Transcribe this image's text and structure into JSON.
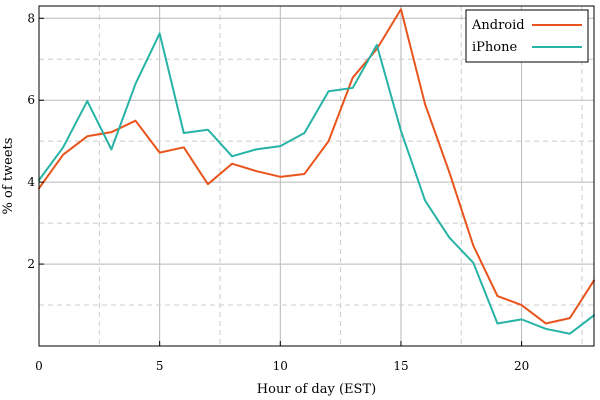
{
  "chart_data": {
    "type": "line",
    "title": "",
    "xlabel": "Hour of day (EST)",
    "ylabel": "% of tweets",
    "xlim": [
      0,
      23
    ],
    "ylim": [
      0,
      8.3
    ],
    "x_ticks": [
      0,
      5,
      10,
      15,
      20
    ],
    "y_ticks": [
      2,
      4,
      6,
      8
    ],
    "grid": true,
    "legend_position": "top-right",
    "x": [
      0,
      1,
      2,
      3,
      4,
      5,
      6,
      7,
      8,
      9,
      10,
      11,
      12,
      13,
      14,
      15,
      16,
      17,
      18,
      19,
      20,
      21,
      22,
      23
    ],
    "series": [
      {
        "name": "Android",
        "color": "#e8541c",
        "values": [
          3.85,
          4.67,
          5.12,
          5.22,
          5.5,
          4.72,
          4.85,
          3.95,
          4.45,
          4.27,
          4.13,
          4.2,
          5.0,
          6.55,
          7.25,
          8.22,
          5.9,
          4.25,
          2.45,
          1.22,
          1.0,
          0.55,
          0.68,
          1.6
        ]
      },
      {
        "name": "iPhone",
        "color": "#27b3a6",
        "values": [
          4.05,
          4.85,
          5.98,
          4.8,
          6.4,
          7.63,
          5.2,
          5.28,
          4.63,
          4.8,
          4.88,
          5.2,
          6.22,
          6.3,
          7.35,
          5.25,
          3.55,
          2.65,
          2.03,
          0.55,
          0.65,
          0.42,
          0.3,
          0.75
        ]
      }
    ]
  }
}
